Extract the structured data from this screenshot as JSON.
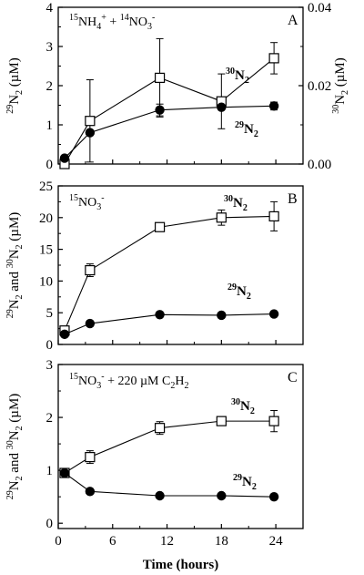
{
  "chart_data": [
    {
      "type": "line",
      "panel_label": "A",
      "annotation": {
        "parts": [
          {
            "t": "15",
            "s": "sup"
          },
          {
            "t": "NH"
          },
          {
            "t": "4",
            "s": "sub"
          },
          {
            "t": "+",
            "s": "sup"
          },
          {
            "t": " + "
          },
          {
            "t": "14",
            "s": "sup"
          },
          {
            "t": "NO"
          },
          {
            "t": "3",
            "s": "sub"
          },
          {
            "t": "-",
            "s": "sup"
          }
        ]
      },
      "ylabel": {
        "parts": [
          {
            "t": "29",
            "s": "sup"
          },
          {
            "t": "N"
          },
          {
            "t": "2",
            "s": "sub"
          },
          {
            "t": " (µM)"
          }
        ]
      },
      "y2label": {
        "parts": [
          {
            "t": "30",
            "s": "sup"
          },
          {
            "t": "N"
          },
          {
            "t": "2",
            "s": "sub"
          },
          {
            "t": " (µM)"
          }
        ]
      },
      "xlim": [
        0,
        27
      ],
      "ylim": [
        0,
        4
      ],
      "yticks": [
        0,
        1,
        2,
        3,
        4
      ],
      "y2lim": [
        0,
        0.04
      ],
      "y2ticks": [
        0.0,
        0.02,
        0.04
      ],
      "y2tick_labels": [
        "0.00",
        "0.02",
        "0.04"
      ],
      "series": [
        {
          "label": {
            "parts": [
              {
                "t": "30",
                "s": "sup"
              },
              {
                "t": "N"
              },
              {
                "t": "2",
                "s": "sub"
              }
            ]
          },
          "marker": "open-square",
          "axis": "right",
          "x": [
            0.7,
            3.5,
            11.2,
            18,
            23.8
          ],
          "y": [
            0.0,
            0.011,
            0.022,
            0.016,
            0.027
          ],
          "err": [
            0.0,
            0.0105,
            0.01,
            0.007,
            0.004
          ]
        },
        {
          "label": {
            "parts": [
              {
                "t": "29",
                "s": "sup"
              },
              {
                "t": "N"
              },
              {
                "t": "2",
                "s": "sub"
              }
            ]
          },
          "marker": "filled-circle",
          "axis": "left",
          "x": [
            0.7,
            3.5,
            11.2,
            18,
            23.8
          ],
          "y": [
            0.15,
            0.8,
            1.38,
            1.45,
            1.48
          ],
          "err": [
            0.0,
            0.0,
            0.15,
            0.0,
            0.1
          ]
        }
      ]
    },
    {
      "type": "line",
      "panel_label": "B",
      "annotation": {
        "parts": [
          {
            "t": "15",
            "s": "sup"
          },
          {
            "t": "NO"
          },
          {
            "t": "3",
            "s": "sub"
          },
          {
            "t": "-",
            "s": "sup"
          }
        ]
      },
      "ylabel": {
        "parts": [
          {
            "t": "29",
            "s": "sup"
          },
          {
            "t": "N"
          },
          {
            "t": "2",
            "s": "sub"
          },
          {
            "t": " and "
          },
          {
            "t": "30",
            "s": "sup"
          },
          {
            "t": "N"
          },
          {
            "t": "2",
            "s": "sub"
          },
          {
            "t": " (µM)"
          }
        ]
      },
      "xlim": [
        0,
        27
      ],
      "ylim": [
        0,
        25
      ],
      "yticks": [
        0,
        5,
        10,
        15,
        20,
        25
      ],
      "series": [
        {
          "label": {
            "parts": [
              {
                "t": "30",
                "s": "sup"
              },
              {
                "t": "N"
              },
              {
                "t": "2",
                "s": "sub"
              }
            ]
          },
          "marker": "open-square",
          "axis": "left",
          "x": [
            0.7,
            3.5,
            11.2,
            18,
            23.8
          ],
          "y": [
            2.2,
            11.7,
            18.5,
            20.0,
            20.2
          ],
          "err": [
            0.4,
            1.0,
            0.0,
            1.2,
            2.3
          ]
        },
        {
          "label": {
            "parts": [
              {
                "t": "29",
                "s": "sup"
              },
              {
                "t": "N"
              },
              {
                "t": "2",
                "s": "sub"
              }
            ]
          },
          "marker": "filled-circle",
          "axis": "left",
          "x": [
            0.7,
            3.5,
            11.2,
            18,
            23.8
          ],
          "y": [
            1.6,
            3.3,
            4.7,
            4.6,
            4.8
          ],
          "err": [
            0.0,
            0.0,
            0.0,
            0.0,
            0.0
          ]
        }
      ]
    },
    {
      "type": "line",
      "panel_label": "C",
      "annotation": {
        "parts": [
          {
            "t": "15",
            "s": "sup"
          },
          {
            "t": "NO"
          },
          {
            "t": "3",
            "s": "sub"
          },
          {
            "t": "-",
            "s": "sup"
          },
          {
            "t": " + 220 µM C"
          },
          {
            "t": "2",
            "s": "sub"
          },
          {
            "t": "H"
          },
          {
            "t": "2",
            "s": "sub"
          }
        ]
      },
      "ylabel": {
        "parts": [
          {
            "t": "29",
            "s": "sup"
          },
          {
            "t": "N"
          },
          {
            "t": "2",
            "s": "sub"
          },
          {
            "t": " and "
          },
          {
            "t": "30",
            "s": "sup"
          },
          {
            "t": "N"
          },
          {
            "t": "2",
            "s": "sub"
          },
          {
            "t": " (µM)"
          }
        ]
      },
      "xlabel": "Time (hours)",
      "xlim": [
        0,
        27
      ],
      "xticks": [
        0,
        6,
        12,
        18,
        24
      ],
      "ylim": [
        -0.1,
        3
      ],
      "yticks": [
        0,
        1,
        2,
        3
      ],
      "series": [
        {
          "label": {
            "parts": [
              {
                "t": "30",
                "s": "sup"
              },
              {
                "t": "N"
              },
              {
                "t": "2",
                "s": "sub"
              }
            ]
          },
          "marker": "open-square",
          "axis": "left",
          "x": [
            0.7,
            3.5,
            11.2,
            18,
            23.8
          ],
          "y": [
            0.95,
            1.25,
            1.8,
            1.93,
            1.93
          ],
          "err": [
            0.0,
            0.12,
            0.12,
            0.0,
            0.2
          ]
        },
        {
          "label": {
            "parts": [
              {
                "t": "29",
                "s": "sup"
              },
              {
                "t": "N"
              },
              {
                "t": "2",
                "s": "sub"
              }
            ]
          },
          "marker": "filled-circle",
          "axis": "left",
          "x": [
            0.7,
            3.5,
            11.2,
            18,
            23.8
          ],
          "y": [
            0.95,
            0.6,
            0.52,
            0.52,
            0.5
          ],
          "err": [
            0.0,
            0.0,
            0.0,
            0.0,
            0.0
          ]
        }
      ]
    }
  ]
}
